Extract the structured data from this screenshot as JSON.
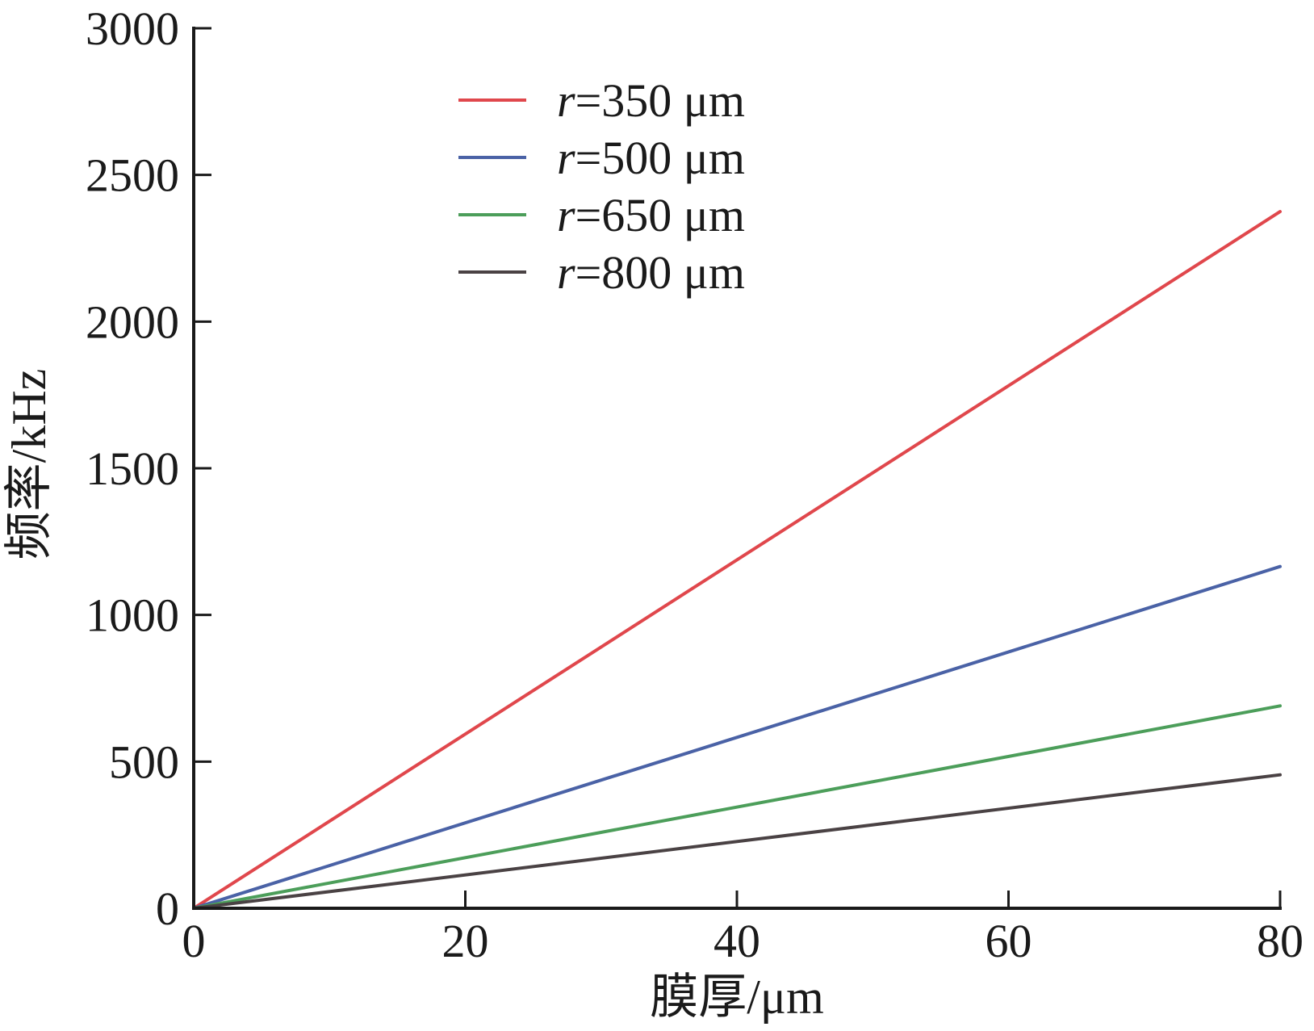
{
  "chart_data": {
    "type": "line",
    "xlabel": "膜厚/μm",
    "ylabel": "频率/kHz",
    "xlim": [
      0,
      80
    ],
    "ylim": [
      0,
      3000
    ],
    "xticks": [
      "0",
      "20",
      "40",
      "60",
      "80"
    ],
    "yticks": [
      "0",
      "500",
      "1000",
      "1500",
      "2000",
      "2500",
      "3000"
    ],
    "grid": false,
    "legend_position": "top-left",
    "series": [
      {
        "name_var": "r",
        "name_rest": "=350 μm",
        "name": "r=350 μm",
        "color": "#e0474c",
        "x": [
          0,
          80
        ],
        "y": [
          0,
          2375
        ]
      },
      {
        "name_var": "r",
        "name_rest": "=500 μm",
        "name": "r=500 μm",
        "color": "#4a62a6",
        "x": [
          0,
          80
        ],
        "y": [
          0,
          1165
        ]
      },
      {
        "name_var": "r",
        "name_rest": "=650 μm",
        "name": "r=650 μm",
        "color": "#4c9e5a",
        "x": [
          0,
          80
        ],
        "y": [
          0,
          690
        ]
      },
      {
        "name_var": "r",
        "name_rest": "=800 μm",
        "name": "r=800 μm",
        "color": "#4a4244",
        "x": [
          0,
          80
        ],
        "y": [
          0,
          455
        ]
      }
    ]
  }
}
